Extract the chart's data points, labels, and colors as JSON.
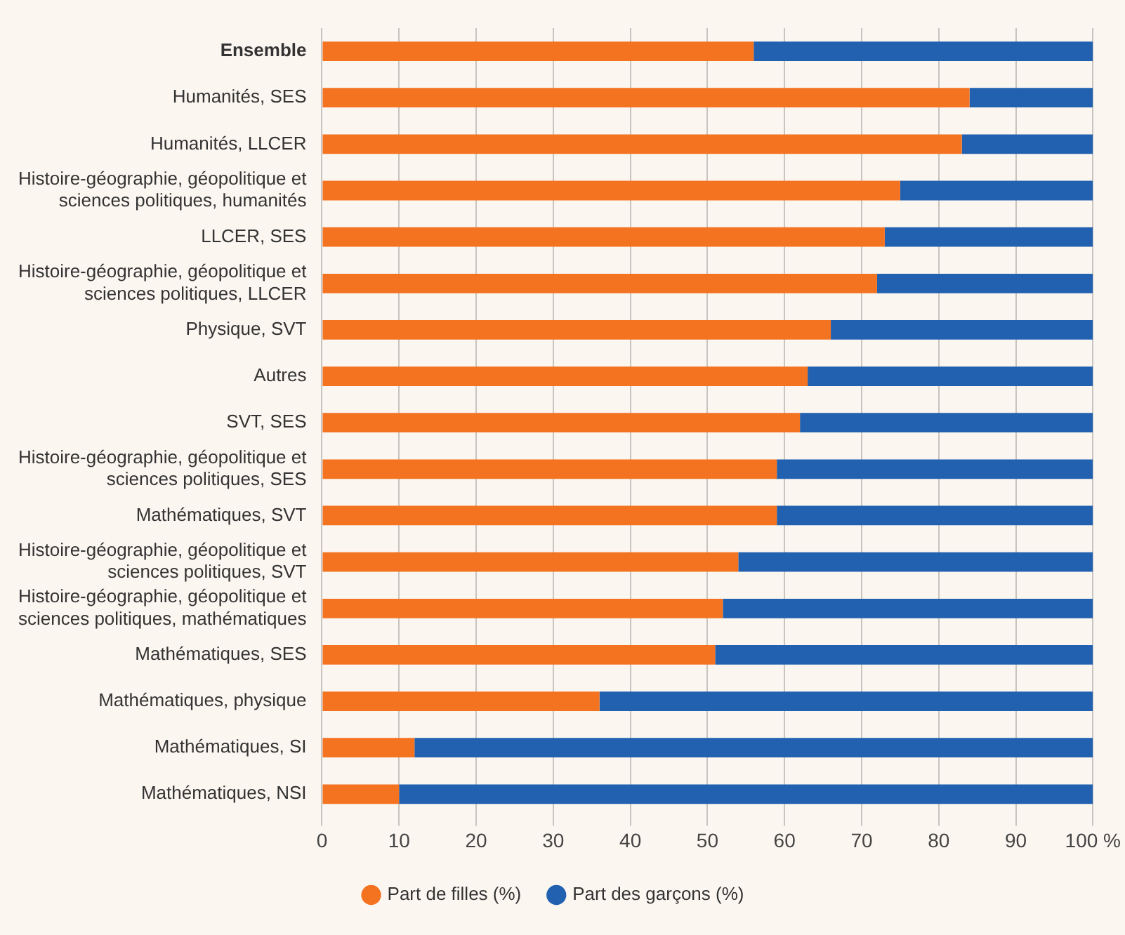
{
  "chart_data": {
    "type": "bar",
    "orientation": "horizontal",
    "stacked": true,
    "categories": [
      "Ensemble",
      "Humanités, SES",
      "Humanités, LLCER",
      "Histoire-géographie, géopolitique et sciences politiques, humanités",
      "LLCER, SES",
      "Histoire-géographie, géopolitique et sciences politiques, LLCER",
      "Physique, SVT",
      "Autres",
      "SVT, SES",
      "Histoire-géographie, géopolitique et sciences politiques, SES",
      "Mathématiques, SVT",
      "Histoire-géographie, géopolitique et sciences politiques, SVT",
      "Histoire-géographie, géopolitique et sciences politiques, mathématiques",
      "Mathématiques, SES",
      "Mathématiques, physique",
      "Mathématiques, SI",
      "Mathématiques, NSI"
    ],
    "series": [
      {
        "name": "Part de filles (%)",
        "color": "#f47321",
        "values": [
          56,
          84,
          83,
          75,
          73,
          72,
          66,
          63,
          62,
          59,
          59,
          54,
          52,
          51,
          36,
          12,
          10
        ]
      },
      {
        "name": "Part des garçons (%)",
        "color": "#2161b0",
        "values": [
          44,
          16,
          17,
          25,
          27,
          28,
          34,
          37,
          38,
          41,
          41,
          46,
          48,
          49,
          64,
          88,
          90
        ]
      }
    ],
    "xlim": [
      0,
      100
    ],
    "xticks": [
      0,
      10,
      20,
      30,
      40,
      50,
      60,
      70,
      80,
      90,
      {
        "value": 100,
        "label": "100 %"
      }
    ],
    "grid": "x",
    "legend": "bottom",
    "marker": "circle"
  }
}
